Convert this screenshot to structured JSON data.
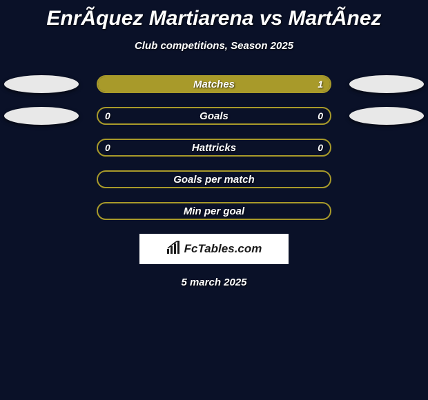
{
  "title": "EnrÃ­quez Martiarena vs MartÃ­nez",
  "subtitle": "Club competitions, Season 2025",
  "brand": "FcTables.com",
  "date": "5 march 2025",
  "colors": {
    "background": "#0a1128",
    "bar_fill": "#a89a2a",
    "bar_border": "#a89a2a",
    "ellipse_left": "#e8e8e8",
    "ellipse_right": "#e8e8e8",
    "text": "#ffffff",
    "brand_bg": "#ffffff",
    "brand_text": "#1a1a1a"
  },
  "stats": [
    {
      "label": "Matches",
      "left_value": "",
      "right_value": "1",
      "left_fill_pct": 0,
      "right_fill_pct": 100,
      "show_left_ellipse": true,
      "show_right_ellipse": true
    },
    {
      "label": "Goals",
      "left_value": "0",
      "right_value": "0",
      "left_fill_pct": 0,
      "right_fill_pct": 0,
      "show_left_ellipse": true,
      "show_right_ellipse": true
    },
    {
      "label": "Hattricks",
      "left_value": "0",
      "right_value": "0",
      "left_fill_pct": 0,
      "right_fill_pct": 0,
      "show_left_ellipse": false,
      "show_right_ellipse": false
    },
    {
      "label": "Goals per match",
      "left_value": "",
      "right_value": "",
      "left_fill_pct": 0,
      "right_fill_pct": 0,
      "show_left_ellipse": false,
      "show_right_ellipse": false
    },
    {
      "label": "Min per goal",
      "left_value": "",
      "right_value": "",
      "left_fill_pct": 0,
      "right_fill_pct": 0,
      "show_left_ellipse": false,
      "show_right_ellipse": false
    }
  ]
}
